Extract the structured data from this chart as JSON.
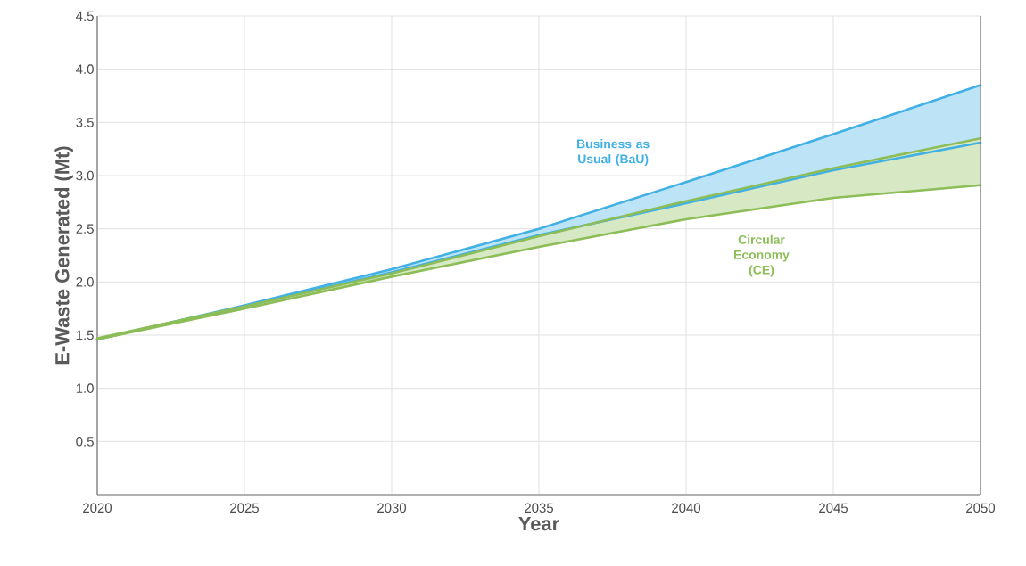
{
  "chart_data": {
    "type": "line",
    "xlabel": "Year",
    "ylabel": "E-Waste Generated (Mt)",
    "x": [
      2020,
      2025,
      2030,
      2035,
      2040,
      2045,
      2050
    ],
    "series": [
      {
        "name": "Business as Usual (BaU)",
        "color": "#41b0e4",
        "values": [
          1.46,
          1.78,
          2.12,
          2.5,
          2.94,
          3.39,
          3.85
        ],
        "lower": [
          1.46,
          1.77,
          2.09,
          2.44,
          2.74,
          3.05,
          3.31
        ],
        "upper": [
          1.46,
          1.78,
          2.12,
          2.5,
          2.94,
          3.39,
          3.85
        ]
      },
      {
        "name": "Circular Economy (CE)",
        "color": "#8cbd57",
        "values": [
          1.47,
          1.77,
          2.08,
          2.43,
          2.76,
          3.07,
          3.35
        ],
        "lower": [
          1.46,
          1.75,
          2.05,
          2.33,
          2.59,
          2.79,
          2.91
        ],
        "upper": [
          1.47,
          1.77,
          2.08,
          2.43,
          2.76,
          3.07,
          3.35
        ]
      }
    ],
    "xlim": [
      2020,
      2050
    ],
    "ylim": [
      0,
      4.5
    ],
    "xticks": [
      2020,
      2025,
      2030,
      2035,
      2040,
      2045,
      2050
    ],
    "yticks": [
      {
        "value": 0,
        "label": null
      },
      0.5,
      {
        "value": 1,
        "label": "1.0"
      },
      1.5,
      {
        "value": 2,
        "label": "2.0"
      },
      2.5,
      {
        "value": 3,
        "label": "3.0"
      },
      3.5,
      {
        "value": 4,
        "label": "4.0"
      },
      4.5
    ],
    "grid": true,
    "marker": "none",
    "line_style": "solid"
  }
}
